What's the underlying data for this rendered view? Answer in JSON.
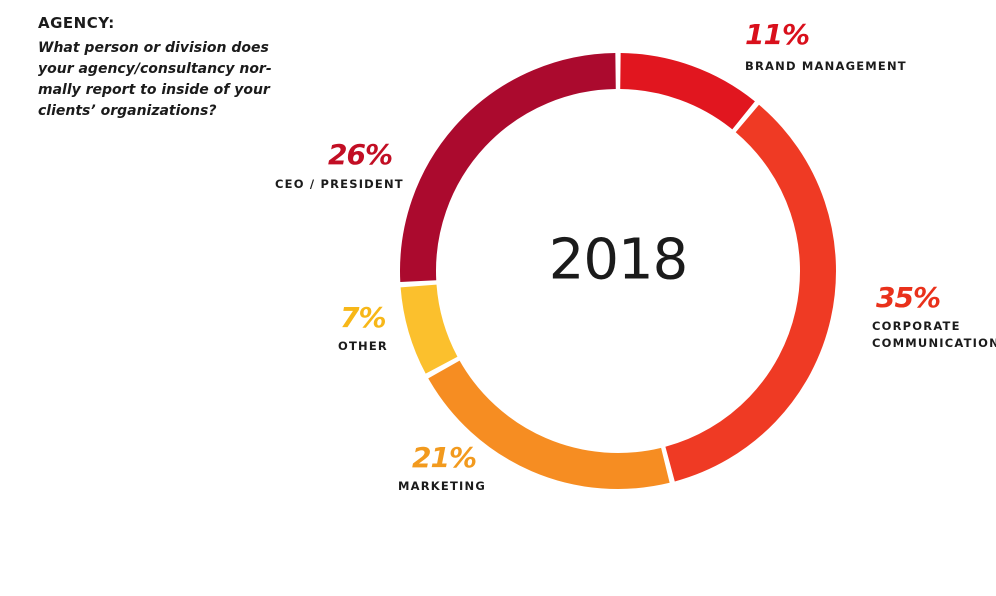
{
  "header": {
    "label": "AGENCY:",
    "question_lines": [
      "What person or division does",
      "your agency/consultancy nor-",
      "mally report to inside of your",
      "clients’ organizations?"
    ]
  },
  "center_label": "2018",
  "chart_data": {
    "type": "pie",
    "variant": "donut",
    "title": "",
    "center_text": "2018",
    "slices": [
      {
        "label": "BRAND MANAGEMENT",
        "label_lines": [
          "BRAND MANAGEMENT"
        ],
        "value": 11,
        "display": "11%",
        "color": "#e1161f"
      },
      {
        "label": "CORPORATE COMMUNICATIONS",
        "label_lines": [
          "CORPORATE",
          "COMMUNICATIONS"
        ],
        "value": 35,
        "display": "35%",
        "color": "#ef3a24"
      },
      {
        "label": "MARKETING",
        "label_lines": [
          "MARKETING"
        ],
        "value": 21,
        "display": "21%",
        "color": "#f68d22"
      },
      {
        "label": "OTHER",
        "label_lines": [
          "OTHER"
        ],
        "value": 7,
        "display": "7%",
        "color": "#fbc02d"
      },
      {
        "label": "CEO / PRESIDENT",
        "label_lines": [
          "CEO / PRESIDENT"
        ],
        "value": 26,
        "display": "26%",
        "color": "#ab0a2e"
      }
    ],
    "label_colors": {
      "BRAND MANAGEMENT": "#d9101c",
      "CORPORATE COMMUNICATIONS": "#e9311b",
      "MARKETING": "#f29a1e",
      "OTHER": "#f7b718",
      "CEO / PRESIDENT": "#c20e24"
    },
    "legend": "none",
    "grid": false
  }
}
